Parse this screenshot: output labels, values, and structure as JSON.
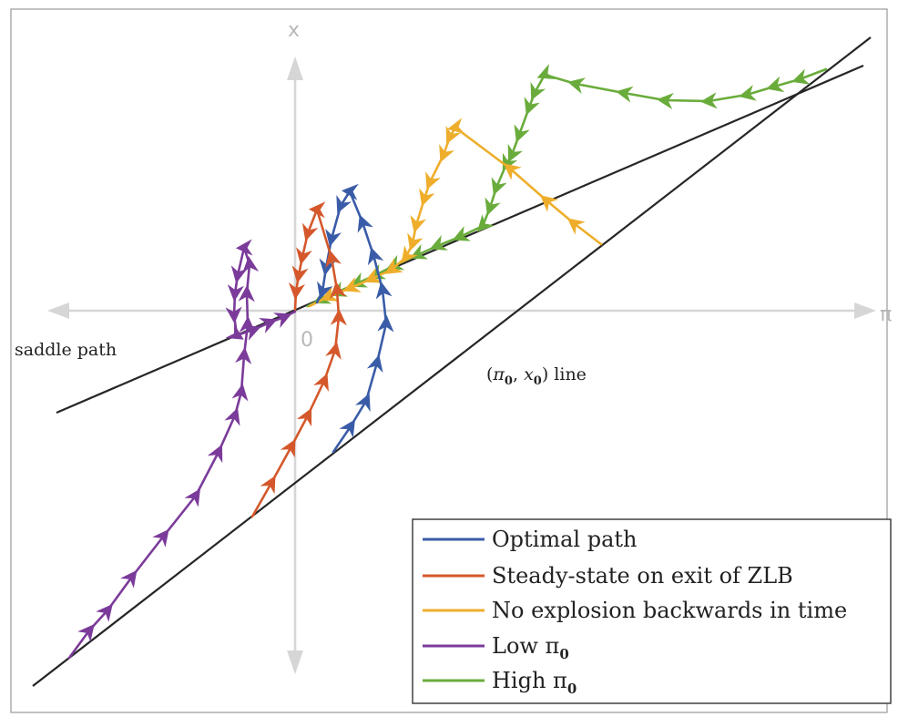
{
  "axes": {
    "x_label": "π",
    "y_label": "x",
    "origin_label": "0"
  },
  "annotations": {
    "saddle_path": "saddle path",
    "pi0_x0_line": {
      "open": "(",
      "pi": "π",
      "pi_sub": "0",
      "comma": ", ",
      "x": "x",
      "x_sub": "0",
      "close": ")",
      "suffix": " line"
    }
  },
  "legend": [
    {
      "id": "optimal",
      "color": "#3a5ca8",
      "label": "Optimal path",
      "sub": ""
    },
    {
      "id": "steady",
      "color": "#d4582b",
      "label": "Steady-state on exit of ZLB",
      "sub": ""
    },
    {
      "id": "noexplosion",
      "color": "#eeae2c",
      "label": "No explosion backwards in time",
      "sub": ""
    },
    {
      "id": "low",
      "color": "#7b3b9a",
      "label": "Low π",
      "sub": "0"
    },
    {
      "id": "high",
      "color": "#6aac3c",
      "label": "High π",
      "sub": "0"
    }
  ],
  "colors": {
    "optimal": "#3a5ca8",
    "steady": "#d4582b",
    "noexplosion": "#eeae2c",
    "low": "#7b3b9a",
    "high": "#6aac3c",
    "guide_lines": "#262626",
    "axes": "#d6d6d6"
  }
}
